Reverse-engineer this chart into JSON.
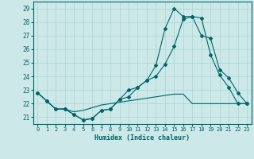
{
  "xlabel": "Humidex (Indice chaleur)",
  "bg_color": "#cce8e8",
  "grid_color": "#aad4d4",
  "line_color": "#006666",
  "xlim": [
    -0.5,
    23.5
  ],
  "ylim": [
    20.5,
    29.5
  ],
  "yticks": [
    21,
    22,
    23,
    24,
    25,
    26,
    27,
    28,
    29
  ],
  "xticks": [
    0,
    1,
    2,
    3,
    4,
    5,
    6,
    7,
    8,
    9,
    10,
    11,
    12,
    13,
    14,
    15,
    16,
    17,
    18,
    19,
    20,
    21,
    22,
    23
  ],
  "line1_y": [
    22.8,
    22.2,
    21.6,
    21.6,
    21.2,
    20.8,
    20.9,
    21.5,
    21.6,
    22.3,
    23.0,
    23.2,
    23.7,
    24.0,
    24.9,
    26.2,
    28.2,
    28.4,
    28.3,
    25.6,
    24.1,
    23.2,
    22.0,
    22.0
  ],
  "line2_y": [
    22.8,
    22.2,
    21.6,
    21.6,
    21.2,
    20.8,
    20.9,
    21.5,
    21.6,
    22.3,
    22.5,
    23.2,
    23.7,
    24.8,
    27.5,
    29.0,
    28.4,
    28.4,
    27.0,
    26.8,
    24.5,
    23.9,
    22.8,
    22.0
  ],
  "line3_y": [
    22.8,
    22.2,
    21.6,
    21.6,
    21.4,
    21.5,
    21.7,
    21.9,
    22.0,
    22.1,
    22.2,
    22.3,
    22.4,
    22.5,
    22.6,
    22.7,
    22.7,
    22.0,
    22.0,
    22.0,
    22.0,
    22.0,
    22.0,
    22.0
  ]
}
